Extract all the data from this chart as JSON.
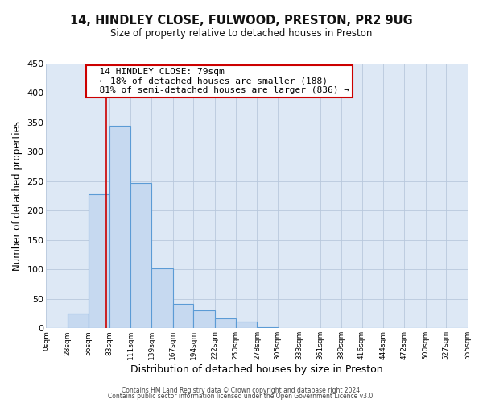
{
  "title": "14, HINDLEY CLOSE, FULWOOD, PRESTON, PR2 9UG",
  "subtitle": "Size of property relative to detached houses in Preston",
  "xlabel": "Distribution of detached houses by size in Preston",
  "ylabel": "Number of detached properties",
  "bar_values": [
    0,
    25,
    228,
    345,
    247,
    102,
    41,
    30,
    17,
    12,
    2,
    0,
    0,
    0,
    0,
    0,
    0,
    0,
    0,
    0,
    2
  ],
  "bin_edges": [
    0,
    28,
    56,
    83,
    111,
    139,
    167,
    194,
    222,
    250,
    278,
    305,
    333,
    361,
    389,
    416,
    444,
    472,
    500,
    527,
    555
  ],
  "tick_labels": [
    "0sqm",
    "28sqm",
    "56sqm",
    "83sqm",
    "111sqm",
    "139sqm",
    "167sqm",
    "194sqm",
    "222sqm",
    "250sqm",
    "278sqm",
    "305sqm",
    "333sqm",
    "361sqm",
    "389sqm",
    "416sqm",
    "444sqm",
    "472sqm",
    "500sqm",
    "527sqm",
    "555sqm"
  ],
  "bar_color": "#c6d9f0",
  "bar_edge_color": "#5b9bd5",
  "property_line_x": 79,
  "ylim": [
    0,
    450
  ],
  "yticks": [
    0,
    50,
    100,
    150,
    200,
    250,
    300,
    350,
    400,
    450
  ],
  "annotation_title": "14 HINDLEY CLOSE: 79sqm",
  "annotation_line1": "← 18% of detached houses are smaller (188)",
  "annotation_line2": "81% of semi-detached houses are larger (836) →",
  "annotation_box_color": "#ffffff",
  "annotation_box_edge": "#cc0000",
  "property_line_color": "#cc0000",
  "footer_line1": "Contains HM Land Registry data © Crown copyright and database right 2024.",
  "footer_line2": "Contains public sector information licensed under the Open Government Licence v3.0.",
  "background_color": "#ffffff",
  "plot_bg_color": "#dde8f5",
  "grid_color": "#b8c8dc"
}
